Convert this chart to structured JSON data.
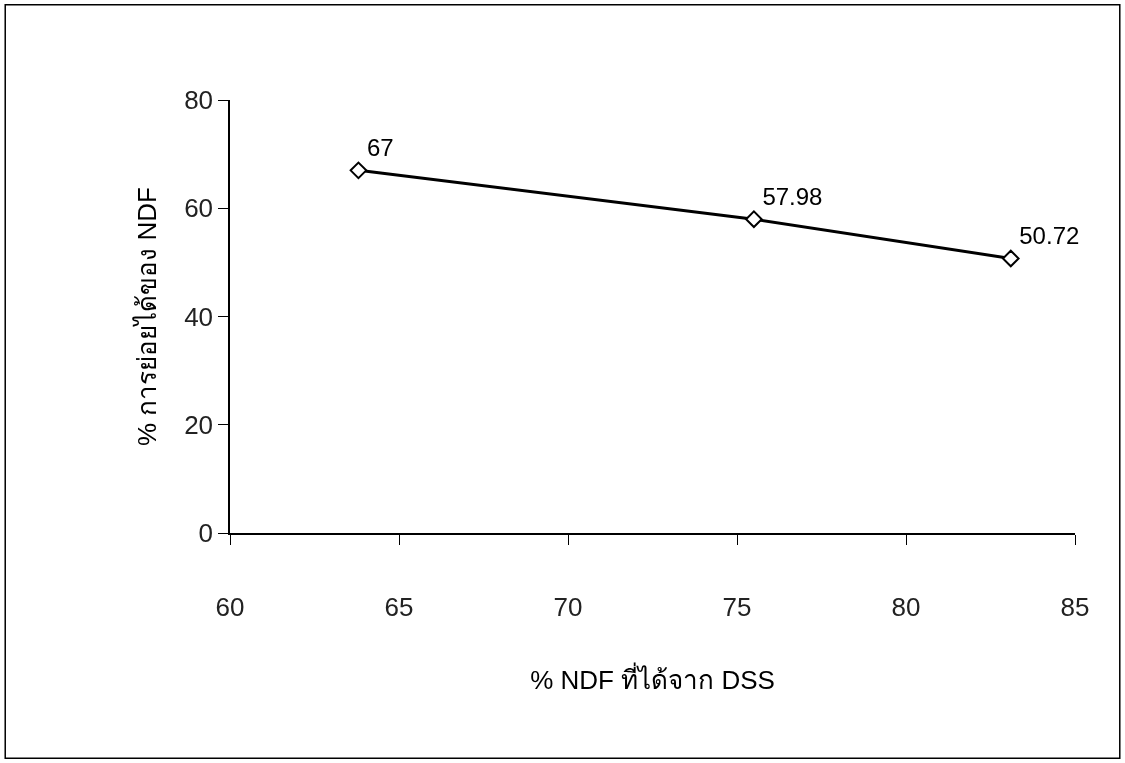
{
  "chart_data": {
    "type": "line",
    "xlabel": "% NDF ที่ได้จาก DSS",
    "ylabel": "% การย่อยได้ของ NDF",
    "x": [
      63.8,
      75.5,
      83.1
    ],
    "series": [
      {
        "color": "#000000",
        "values": [
          67,
          57.98,
          50.72
        ]
      }
    ],
    "xlim": [
      60,
      85
    ],
    "xticks": [
      60,
      65,
      70,
      75,
      80,
      85
    ],
    "ylim": [
      0,
      80
    ],
    "yticks": [
      0,
      20,
      40,
      60,
      80
    ],
    "data_labels": true,
    "marker": "diamond",
    "line_style": "solid"
  }
}
